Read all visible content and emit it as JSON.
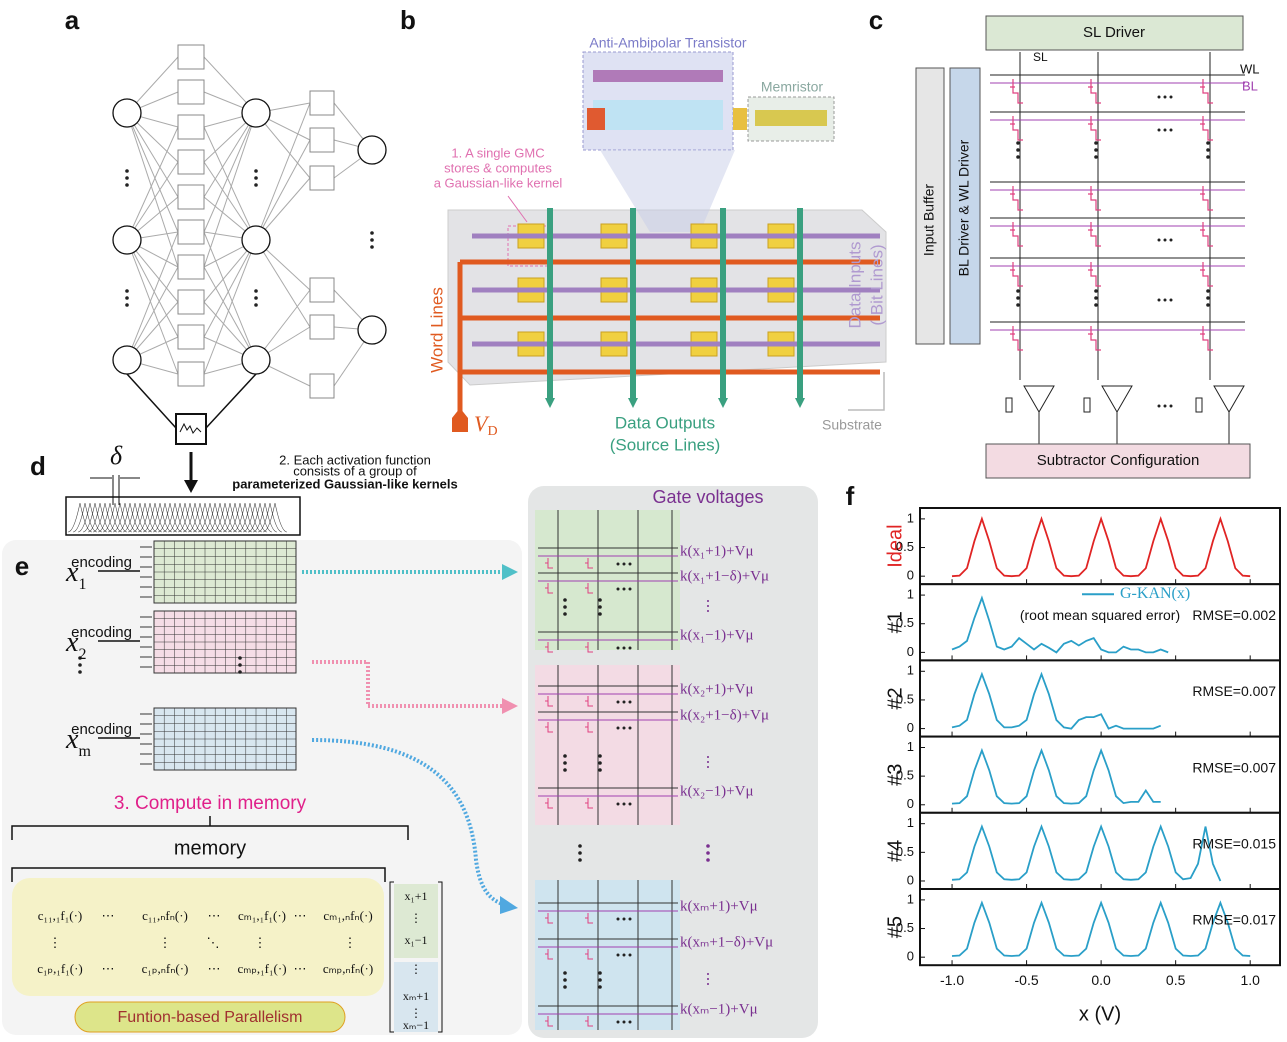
{
  "panels": {
    "a": {
      "label": "a"
    },
    "b": {
      "label": "b",
      "transistor_title": "Anti-Ambipolar Transistor",
      "memristor_title": "Memristor",
      "gmc_note": [
        "1. A single GMC",
        "stores & computes",
        "a Gaussian-like kernel"
      ],
      "word_lines": "Word Lines",
      "drain_voltage": {
        "symbol": "V",
        "subscript": "D"
      },
      "outputs": [
        "Data Outputs",
        "(Source Lines)"
      ],
      "inputs": [
        "Data Inputs",
        "( Bit Lines)"
      ],
      "substrate": "Substrate"
    },
    "c": {
      "label": "c",
      "sl_driver": "SL Driver",
      "sl": "SL",
      "wl": "WL",
      "bl": "BL",
      "input_buffer": "Input Buffer",
      "driver": "BL Driver & WL Driver",
      "subtractor": "Subtractor Configuration"
    },
    "d": {
      "label": "d",
      "delta": "δ",
      "note": [
        "2. Each activation function",
        "consists of a group of",
        "parameterized Gaussian-like kernels"
      ]
    },
    "e": {
      "label": "e",
      "inputs": [
        {
          "symbol": "x",
          "subscript": "1"
        },
        {
          "symbol": "x",
          "subscript": "2"
        },
        {
          "symbol": "x",
          "subscript": "m"
        }
      ],
      "encoding": [
        "encoding",
        "encoding",
        "encoding"
      ],
      "compute": "3. Compute in memory",
      "memory": "memory",
      "matrix": [
        [
          "c₁₁,₁f₁(·)",
          "⋯",
          "c₁₁,ₙfₙ(·)",
          "⋯",
          "cₘ₁,₁f₁(·)",
          "⋯",
          "cₘ₁,ₙfₙ(·)"
        ],
        [
          "⋮",
          "⋮",
          "⋱",
          "⋮",
          "⋮"
        ],
        [
          "c₁ₚ,₁f₁(·)",
          "⋯",
          "c₁ₚ,ₙfₙ(·)",
          "⋯",
          "cₘₚ,₁f₁(·)",
          "⋯",
          "cₘₚ,ₙfₙ(·)"
        ]
      ],
      "vector": [
        "x₁+1",
        "⋮",
        "x₁−1",
        "⋮",
        "xₘ+1",
        "⋮",
        "xₘ−1"
      ],
      "parallelism": "Funtion-based Parallelism",
      "gate_title": "Gate voltages",
      "gate_voltages": [
        [
          "k(x₁+1)+Vμ",
          "k(x₁+1−δ)+Vμ",
          "⋮",
          "k(x₁−1)+Vμ"
        ],
        [
          "k(x₂+1)+Vμ",
          "k(x₂+1−δ)+Vμ",
          "⋮",
          "k(x₂−1)+Vμ"
        ],
        [
          "k(xₘ+1)+Vμ",
          "k(xₘ+1−δ)+Vμ",
          "⋮",
          "k(xₘ−1)+Vμ"
        ]
      ]
    }
  },
  "chart_data": {
    "type": "line",
    "panel_label": "f",
    "xlabel": "x (V)",
    "legend_label": "G-KAN(x)",
    "legend_note": "(root mean squared error)",
    "x": [
      -1,
      -0.95,
      -0.9,
      -0.85,
      -0.8,
      -0.75,
      -0.7,
      -0.65,
      -0.6,
      -0.55,
      -0.5,
      -0.45,
      -0.4,
      -0.35,
      -0.3,
      -0.25,
      -0.2,
      -0.15,
      -0.1,
      -0.05,
      0,
      0.05,
      0.1,
      0.15,
      0.2,
      0.25,
      0.3,
      0.35,
      0.4,
      0.45,
      0.5,
      0.55,
      0.6,
      0.65,
      0.7,
      0.75,
      0.8,
      0.85,
      0.9,
      0.95,
      1
    ],
    "xlim": [
      -1.215,
      1.2
    ],
    "ylim": [
      -0.14,
      1.19
    ],
    "xticks": [
      {
        "value": -1,
        "label": "-1.0"
      },
      {
        "value": -0.5,
        "label": "-0.5"
      },
      {
        "value": 0,
        "label": "0.0"
      },
      {
        "value": 0.5,
        "label": "0.5"
      },
      {
        "value": 1,
        "label": "1.0"
      }
    ],
    "yticks": [
      0,
      0.5,
      1
    ],
    "series": [
      {
        "name": "Ideal",
        "color": "#e02424",
        "values": [
          0,
          0.01,
          0.14,
          0.61,
          1,
          0.61,
          0.14,
          0.01,
          0,
          0.01,
          0.14,
          0.61,
          1,
          0.61,
          0.14,
          0.01,
          0,
          0.01,
          0.14,
          0.61,
          1,
          0.61,
          0.14,
          0.01,
          0,
          0.01,
          0.14,
          0.61,
          1,
          0.61,
          0.14,
          0.01,
          0,
          0.01,
          0.14,
          0.61,
          1,
          0.61,
          0.14,
          0.01,
          0
        ]
      },
      {
        "name": "#1",
        "color": "#2a9fc8",
        "annotation": "RMSE=0.002",
        "values": [
          0.05,
          0.1,
          0.2,
          0.6,
          0.95,
          0.55,
          0.1,
          0.05,
          0.1,
          0.25,
          0.15,
          0.05,
          0.15,
          0.08,
          0,
          0.15,
          0.2,
          0.12,
          0.2,
          0.25,
          0.05,
          0,
          0,
          0.1,
          0.05,
          0.05,
          0,
          0,
          0.05,
          0,
          null,
          null,
          null,
          null,
          null,
          null,
          null,
          null,
          null,
          null,
          null
        ]
      },
      {
        "name": "#2",
        "color": "#2a9fc8",
        "annotation": "RMSE=0.007",
        "values": [
          0.02,
          0.05,
          0.15,
          0.6,
          0.95,
          0.6,
          0.15,
          0.02,
          0.02,
          0.05,
          0.15,
          0.6,
          0.95,
          0.6,
          0.15,
          0.02,
          0,
          0.15,
          0.2,
          0.2,
          0.25,
          0,
          0.05,
          0,
          0,
          0,
          0,
          0,
          0.05,
          null,
          null,
          null,
          null,
          null,
          null,
          null,
          null,
          null,
          null,
          null,
          null
        ]
      },
      {
        "name": "#3",
        "color": "#2a9fc8",
        "annotation": "RMSE=0.007",
        "values": [
          0.02,
          0.03,
          0.15,
          0.6,
          0.95,
          0.6,
          0.15,
          0.03,
          0.02,
          0.03,
          0.15,
          0.6,
          0.95,
          0.6,
          0.15,
          0.03,
          0.02,
          0.03,
          0.15,
          0.6,
          0.95,
          0.6,
          0.15,
          0.03,
          0.05,
          0.05,
          0.25,
          0.05,
          0.05,
          null,
          null,
          null,
          null,
          null,
          null,
          null,
          null,
          null,
          null,
          null,
          null
        ]
      },
      {
        "name": "#4",
        "color": "#2a9fc8",
        "annotation": "RMSE=0.015",
        "values": [
          0.02,
          0.03,
          0.15,
          0.6,
          0.95,
          0.6,
          0.15,
          0.03,
          0.02,
          0.03,
          0.15,
          0.6,
          0.95,
          0.6,
          0.15,
          0.03,
          0.02,
          0.03,
          0.15,
          0.6,
          0.95,
          0.6,
          0.15,
          0.03,
          0.02,
          0.03,
          0.15,
          0.6,
          0.95,
          0.6,
          0.15,
          0.03,
          0.05,
          0.3,
          0.95,
          0.3,
          0,
          null,
          null,
          null,
          null
        ]
      },
      {
        "name": "#5",
        "color": "#2a9fc8",
        "annotation": "RMSE=0.017",
        "values": [
          0.02,
          0.03,
          0.15,
          0.6,
          0.95,
          0.6,
          0.15,
          0.03,
          0.02,
          0.03,
          0.15,
          0.6,
          0.95,
          0.6,
          0.15,
          0.03,
          0.02,
          0.03,
          0.15,
          0.6,
          0.95,
          0.6,
          0.15,
          0.03,
          0.02,
          0.03,
          0.15,
          0.6,
          0.95,
          0.6,
          0.15,
          0.03,
          0.02,
          0.03,
          0.15,
          0.6,
          0.95,
          0.6,
          0.15,
          0.03,
          0.02
        ]
      }
    ]
  }
}
